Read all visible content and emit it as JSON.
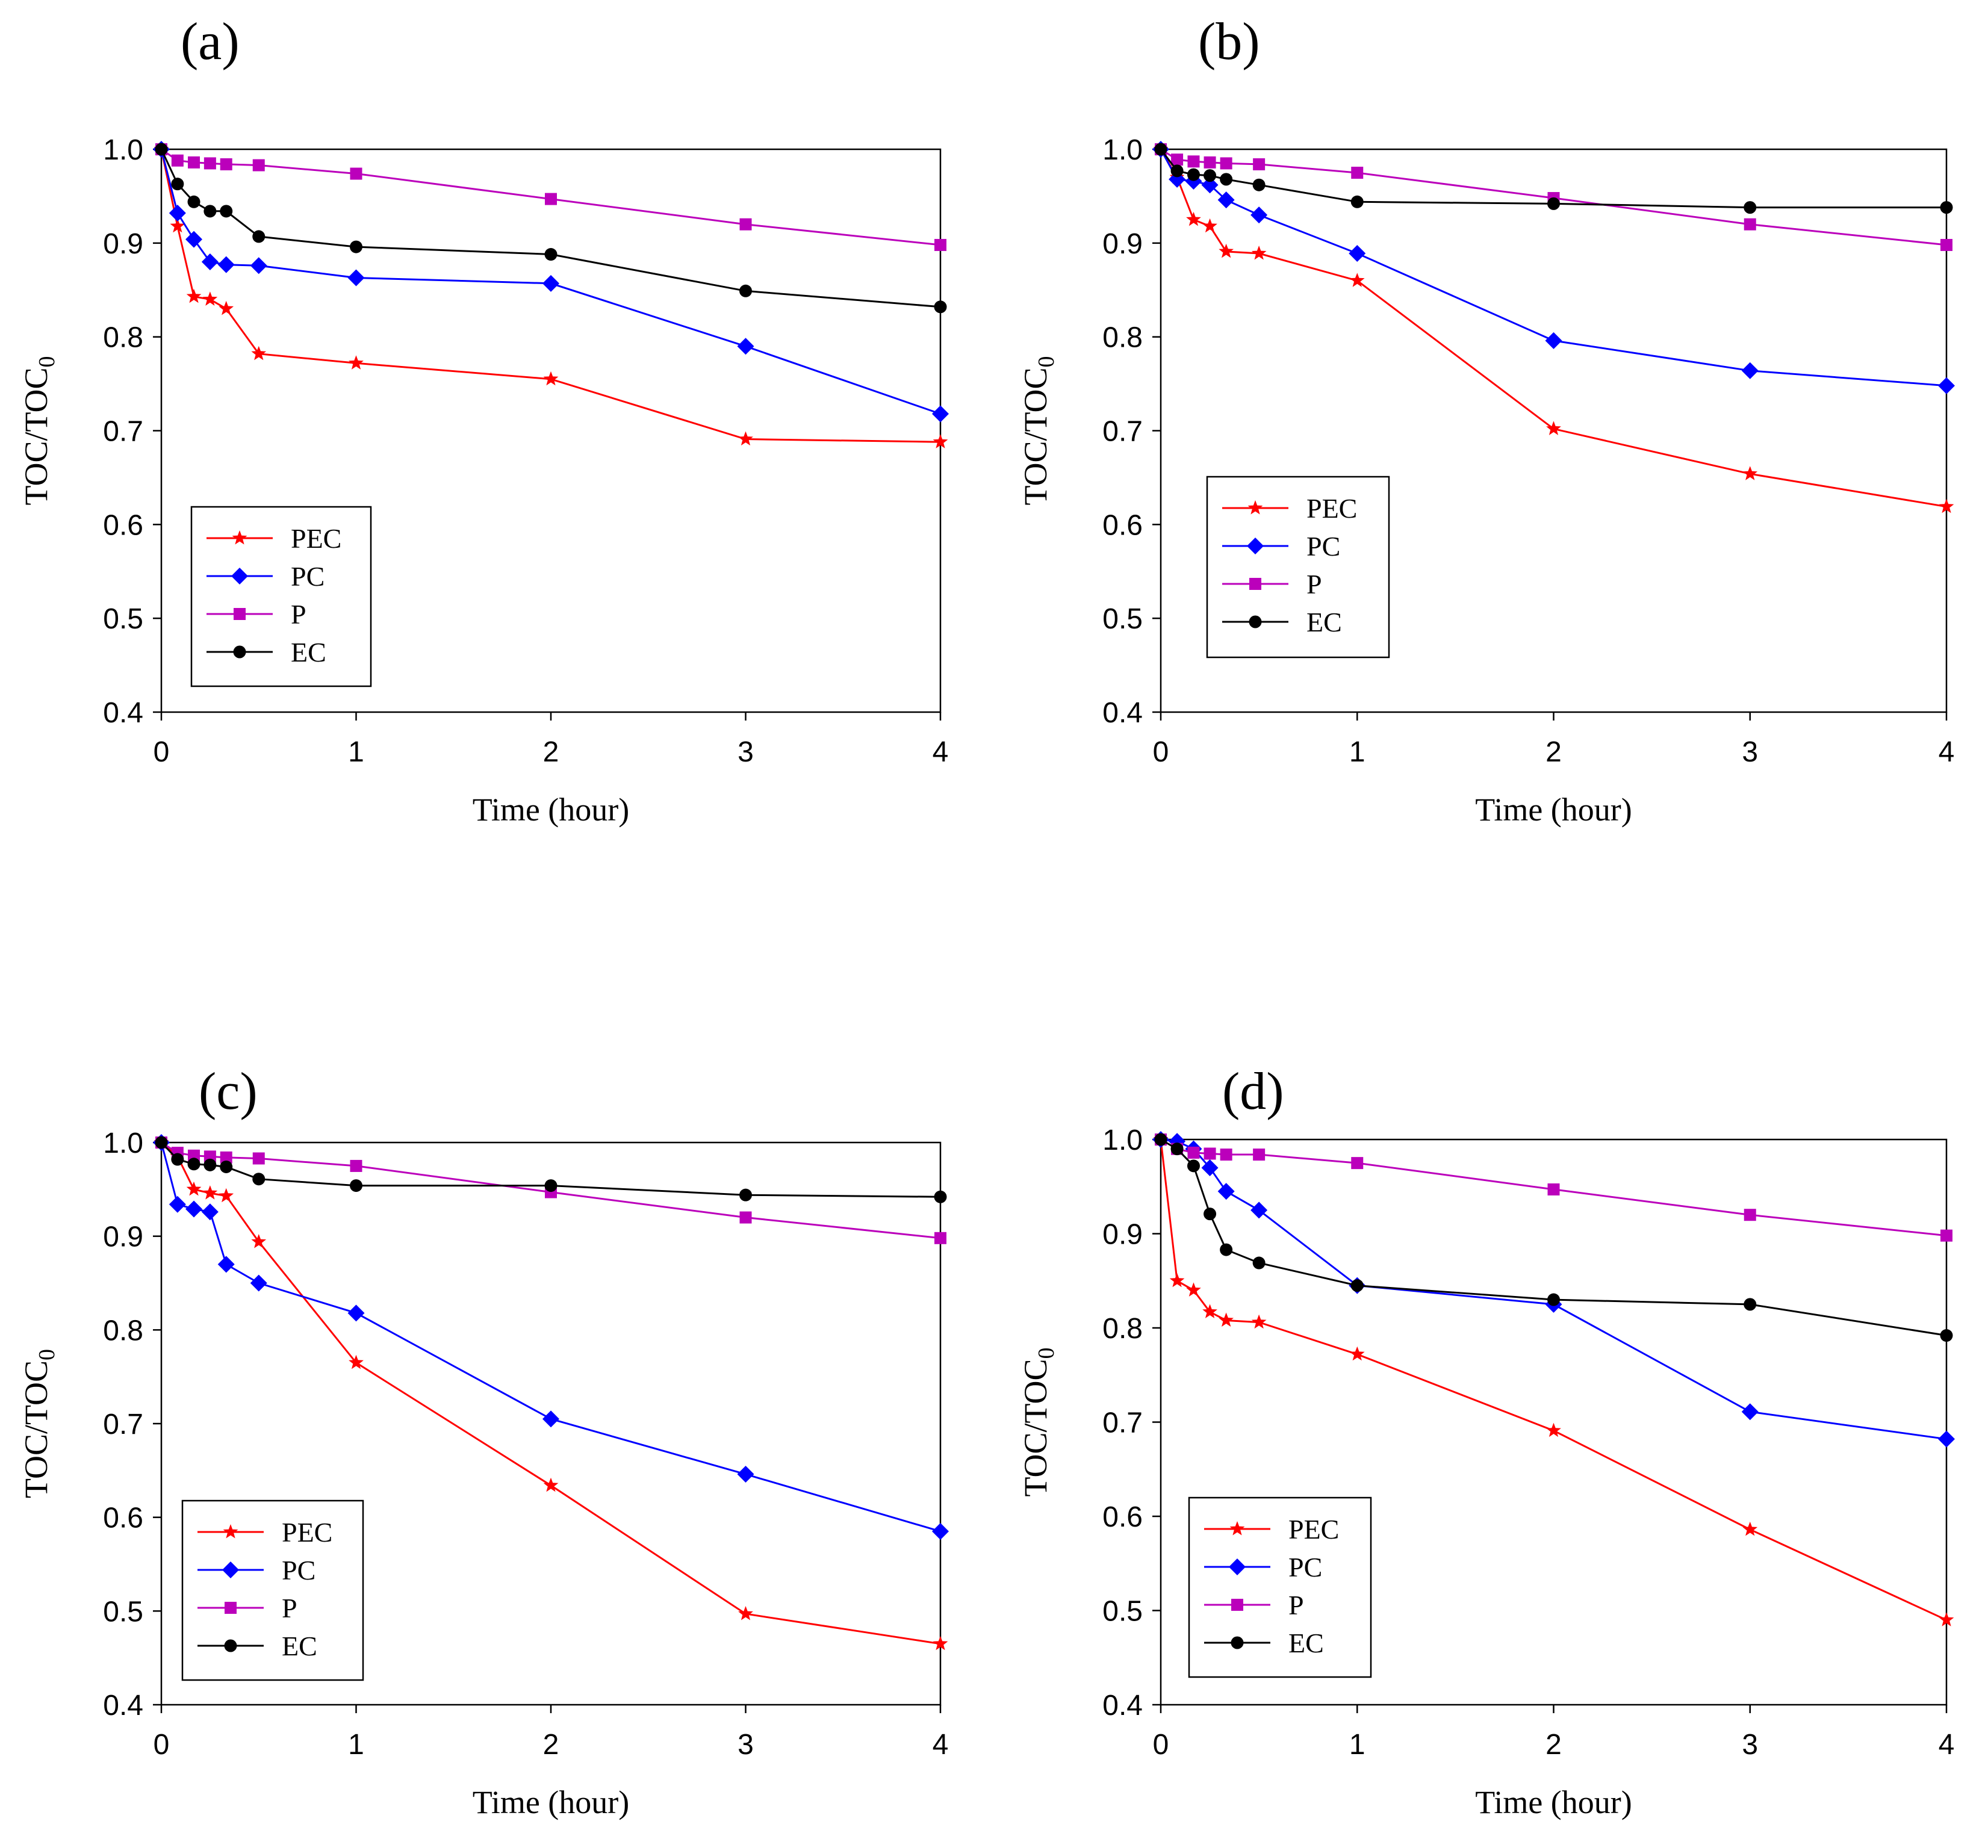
{
  "chart_data": [
    {
      "type": "line",
      "title": "(a)",
      "xlabel": "Time (hour)",
      "ylabel": "TOC/TOC",
      "ylabel_sub": "0",
      "xlim": [
        0,
        4
      ],
      "ylim": [
        0.4,
        1.0
      ],
      "xticks": [
        "0",
        "1",
        "2",
        "3",
        "4"
      ],
      "yticks": [
        "0.4",
        "0.5",
        "0.6",
        "0.7",
        "0.8",
        "0.9",
        "1.0"
      ],
      "legend_position": "bottom-left",
      "x": [
        0,
        0.083,
        0.167,
        0.25,
        0.333,
        0.5,
        1,
        2,
        3,
        4
      ],
      "series": [
        {
          "name": "PEC",
          "color": "#ff0000",
          "marker": "star",
          "values": [
            1.0,
            0.918,
            0.843,
            0.84,
            0.83,
            0.782,
            0.772,
            0.755,
            0.691,
            0.688
          ]
        },
        {
          "name": "PC",
          "color": "#0000ff",
          "marker": "diamond",
          "values": [
            1.0,
            0.932,
            0.904,
            0.88,
            0.877,
            0.876,
            0.863,
            0.857,
            0.79,
            0.718
          ]
        },
        {
          "name": "P",
          "color": "#bb00bb",
          "marker": "square",
          "values": [
            1.0,
            0.988,
            0.986,
            0.985,
            0.984,
            0.983,
            0.974,
            0.947,
            0.92,
            0.898
          ]
        },
        {
          "name": "EC",
          "color": "#000000",
          "marker": "circle",
          "values": [
            1.0,
            0.963,
            0.944,
            0.934,
            0.934,
            0.907,
            0.896,
            0.888,
            0.849,
            0.832
          ]
        }
      ]
    },
    {
      "type": "line",
      "title": "(b)",
      "xlabel": "Time (hour)",
      "ylabel": "TOC/TOC",
      "ylabel_sub": "0",
      "xlim": [
        0,
        4
      ],
      "ylim": [
        0.4,
        1.0
      ],
      "xticks": [
        "0",
        "1",
        "2",
        "3",
        "4"
      ],
      "yticks": [
        "0.4",
        "0.5",
        "0.6",
        "0.7",
        "0.8",
        "0.9",
        "1.0"
      ],
      "legend_position": "bottom-left",
      "x": [
        0,
        0.083,
        0.167,
        0.25,
        0.333,
        0.5,
        1,
        2,
        3,
        4
      ],
      "series": [
        {
          "name": "PEC",
          "color": "#ff0000",
          "marker": "star",
          "values": [
            1.0,
            0.97,
            0.925,
            0.918,
            0.891,
            0.889,
            0.86,
            0.702,
            0.654,
            0.619
          ]
        },
        {
          "name": "PC",
          "color": "#0000ff",
          "marker": "diamond",
          "values": [
            1.0,
            0.968,
            0.966,
            0.962,
            0.946,
            0.93,
            0.889,
            0.796,
            0.764,
            0.748
          ]
        },
        {
          "name": "P",
          "color": "#bb00bb",
          "marker": "square",
          "values": [
            1.0,
            0.989,
            0.987,
            0.986,
            0.985,
            0.984,
            0.975,
            0.948,
            0.92,
            0.898
          ]
        },
        {
          "name": "EC",
          "color": "#000000",
          "marker": "circle",
          "values": [
            1.0,
            0.977,
            0.973,
            0.972,
            0.968,
            0.962,
            0.944,
            0.942,
            0.938,
            0.938
          ]
        }
      ]
    },
    {
      "type": "line",
      "title": "(c)",
      "xlabel": "Time (hour)",
      "ylabel": "TOC/TOC",
      "ylabel_sub": "0",
      "xlim": [
        0,
        4
      ],
      "ylim": [
        0.4,
        1.0
      ],
      "xticks": [
        "0",
        "1",
        "2",
        "3",
        "4"
      ],
      "yticks": [
        "0.4",
        "0.5",
        "0.6",
        "0.7",
        "0.8",
        "0.9",
        "1.0"
      ],
      "legend_position": "bottom-left",
      "x": [
        0,
        0.083,
        0.167,
        0.25,
        0.333,
        0.5,
        1,
        2,
        3,
        4
      ],
      "series": [
        {
          "name": "PEC",
          "color": "#ff0000",
          "marker": "star",
          "values": [
            1.0,
            0.985,
            0.95,
            0.946,
            0.943,
            0.894,
            0.765,
            0.634,
            0.497,
            0.465
          ]
        },
        {
          "name": "PC",
          "color": "#0000ff",
          "marker": "diamond",
          "values": [
            1.0,
            0.934,
            0.929,
            0.926,
            0.87,
            0.85,
            0.818,
            0.705,
            0.646,
            0.585
          ]
        },
        {
          "name": "P",
          "color": "#bb00bb",
          "marker": "square",
          "values": [
            1.0,
            0.989,
            0.986,
            0.985,
            0.984,
            0.983,
            0.975,
            0.947,
            0.92,
            0.898
          ]
        },
        {
          "name": "EC",
          "color": "#000000",
          "marker": "circle",
          "values": [
            1.0,
            0.982,
            0.977,
            0.976,
            0.974,
            0.961,
            0.954,
            0.954,
            0.944,
            0.942
          ]
        }
      ]
    },
    {
      "type": "line",
      "title": "(d)",
      "xlabel": "Time (hour)",
      "ylabel": "TOC/TOC",
      "ylabel_sub": "0",
      "xlim": [
        0,
        4
      ],
      "ylim": [
        0.4,
        1.0
      ],
      "xticks": [
        "0",
        "1",
        "2",
        "3",
        "4"
      ],
      "yticks": [
        "0.4",
        "0.5",
        "0.6",
        "0.7",
        "0.8",
        "0.9",
        "1.0"
      ],
      "legend_position": "bottom-left",
      "x": [
        0,
        0.083,
        0.167,
        0.25,
        0.333,
        0.5,
        1,
        2,
        3,
        4
      ],
      "series": [
        {
          "name": "PEC",
          "color": "#ff0000",
          "marker": "star",
          "values": [
            1.0,
            0.85,
            0.84,
            0.817,
            0.808,
            0.806,
            0.772,
            0.691,
            0.586,
            0.49
          ]
        },
        {
          "name": "PC",
          "color": "#0000ff",
          "marker": "diamond",
          "values": [
            1.0,
            0.998,
            0.99,
            0.97,
            0.945,
            0.925,
            0.845,
            0.825,
            0.711,
            0.682
          ]
        },
        {
          "name": "P",
          "color": "#bb00bb",
          "marker": "square",
          "values": [
            1.0,
            0.99,
            0.986,
            0.985,
            0.984,
            0.984,
            0.975,
            0.947,
            0.92,
            0.898
          ]
        },
        {
          "name": "EC",
          "color": "#000000",
          "marker": "circle",
          "values": [
            1.0,
            0.99,
            0.972,
            0.921,
            0.883,
            0.869,
            0.845,
            0.83,
            0.825,
            0.792
          ]
        }
      ]
    }
  ]
}
